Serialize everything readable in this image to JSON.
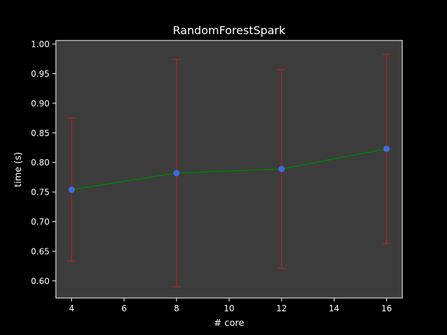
{
  "chart_data": {
    "type": "line",
    "title": "RandomForestSpark",
    "xlabel": "# core",
    "ylabel": "time (s)",
    "xlim": [
      3.4,
      16.6
    ],
    "ylim": [
      0.571,
      1.006
    ],
    "x_ticks": [
      4,
      6,
      8,
      10,
      12,
      14,
      16
    ],
    "y_ticks": [
      0.6,
      0.65,
      0.7,
      0.75,
      0.8,
      0.85,
      0.9,
      0.95,
      1.0
    ],
    "x_tick_labels": [
      "4",
      "6",
      "8",
      "10",
      "12",
      "14",
      "16"
    ],
    "y_tick_labels": [
      "0.60",
      "0.65",
      "0.70",
      "0.75",
      "0.80",
      "0.85",
      "0.90",
      "0.95",
      "1.00"
    ],
    "grid": false,
    "legend": "none",
    "series": [
      {
        "x": [
          4,
          8,
          12,
          16
        ],
        "y": [
          0.754,
          0.782,
          0.789,
          0.823
        ],
        "error": [
          0.121,
          0.192,
          0.168,
          0.16
        ]
      }
    ],
    "colors": {
      "figure_bg": "#000000",
      "axes_bg": "#3c3c3c",
      "axes_edge": "#ffffff",
      "text": "#ffffff",
      "line": "#008000",
      "marker": "#4169e1",
      "errorbar": "#b22222"
    }
  }
}
